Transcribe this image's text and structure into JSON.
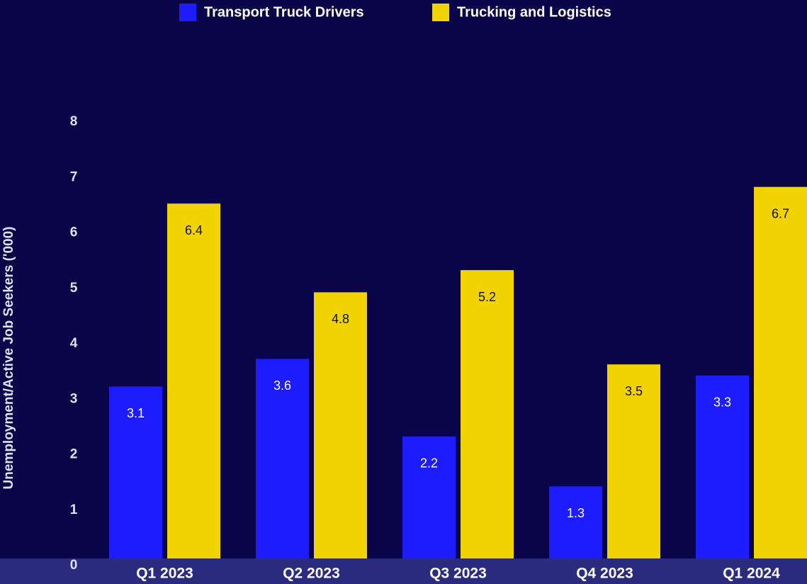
{
  "chart_data": {
    "type": "bar",
    "y_label": "Unemployment/Active Job Seekers ('000)",
    "categories": [
      "Q1 2023",
      "Q2 2023",
      "Q3 2023",
      "Q4 2023",
      "Q1 2024"
    ],
    "series": [
      {
        "name": "Transport Truck Drivers",
        "color": "#1c1cff",
        "values": [
          3.1,
          3.6,
          2.2,
          1.3,
          3.3
        ]
      },
      {
        "name": "Trucking and Logistics",
        "color": "#f0d300",
        "values": [
          6.4,
          4.8,
          5.2,
          3.5,
          6.7
        ]
      }
    ],
    "ylim": [
      0,
      8
    ],
    "yticks": [
      0,
      1,
      2,
      3,
      4,
      5,
      6,
      7,
      8
    ],
    "grid": false,
    "legend": "top"
  }
}
